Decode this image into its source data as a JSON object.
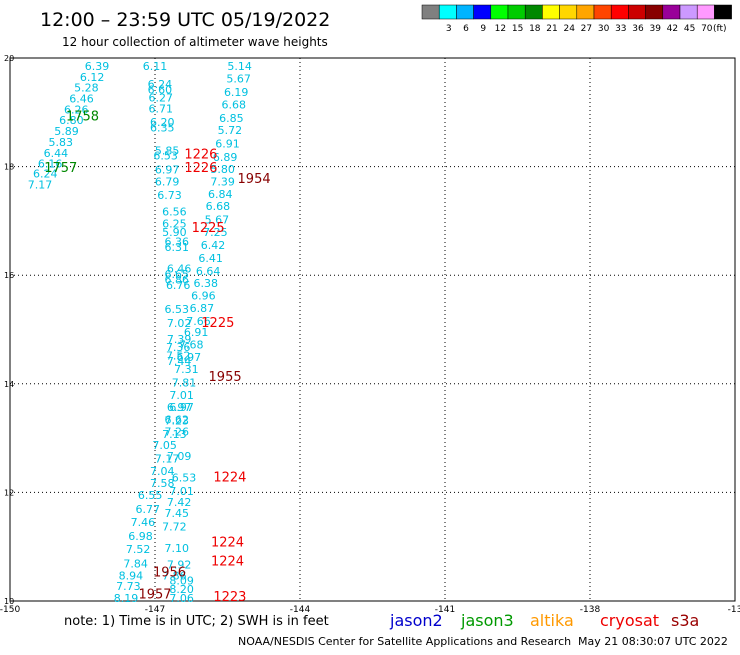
{
  "header": {
    "title": "12:00 – 23:59 UTC 05/19/2022",
    "subtitle": "12 hour collection of altimeter wave heights"
  },
  "legend": {
    "unit": "(ft)",
    "bins": [
      {
        "label": "",
        "color": "#808080"
      },
      {
        "label": "3",
        "color": "#00ffff"
      },
      {
        "label": "6",
        "color": "#00b4ff"
      },
      {
        "label": "9",
        "color": "#0000ff"
      },
      {
        "label": "12",
        "color": "#00ff00"
      },
      {
        "label": "15",
        "color": "#00cc00"
      },
      {
        "label": "18",
        "color": "#008800"
      },
      {
        "label": "21",
        "color": "#ffff00"
      },
      {
        "label": "24",
        "color": "#ffd700"
      },
      {
        "label": "27",
        "color": "#ffa500"
      },
      {
        "label": "30",
        "color": "#ff4500"
      },
      {
        "label": "33",
        "color": "#ff0000"
      },
      {
        "label": "36",
        "color": "#cc0000"
      },
      {
        "label": "39",
        "color": "#880000"
      },
      {
        "label": "42",
        "color": "#990099"
      },
      {
        "label": "45",
        "color": "#cc99ff"
      },
      {
        "label": "70",
        "color": "#ff99ff"
      },
      {
        "label": "",
        "color": "#000000"
      }
    ]
  },
  "axes": {
    "lon_ticks": [
      "-150",
      "-147",
      "-144",
      "-141",
      "-138",
      "-13"
    ],
    "lat_ticks": [
      "20",
      "18",
      "16",
      "14",
      "12",
      "10"
    ],
    "lon_range": [
      -150,
      -135
    ],
    "lat_range": [
      10,
      20
    ]
  },
  "colors": {
    "wave_value": "#00c0e0",
    "pass_red": "#ee0000",
    "pass_darkred": "#880000",
    "pass_green": "#008800"
  },
  "track_labels": [
    {
      "text": "1758",
      "lon": -148.5,
      "lat": 18.85,
      "color": "green"
    },
    {
      "text": "1757",
      "lon": -148.95,
      "lat": 17.9,
      "color": "green"
    },
    {
      "text": "1226",
      "lon": -146.05,
      "lat": 18.15,
      "color": "red"
    },
    {
      "text": "1226",
      "lon": -146.05,
      "lat": 17.9,
      "color": "red"
    },
    {
      "text": "1954",
      "lon": -144.95,
      "lat": 17.7,
      "color": "darkred"
    },
    {
      "text": "1225",
      "lon": -145.9,
      "lat": 16.8,
      "color": "red"
    },
    {
      "text": "1225",
      "lon": -145.7,
      "lat": 15.05,
      "color": "red"
    },
    {
      "text": "1955",
      "lon": -145.55,
      "lat": 14.05,
      "color": "darkred"
    },
    {
      "text": "1224",
      "lon": -145.45,
      "lat": 12.2,
      "color": "red"
    },
    {
      "text": "1224",
      "lon": -145.5,
      "lat": 11.0,
      "color": "red"
    },
    {
      "text": "1224",
      "lon": -145.5,
      "lat": 10.65,
      "color": "red"
    },
    {
      "text": "1956",
      "lon": -146.7,
      "lat": 10.45,
      "color": "darkred"
    },
    {
      "text": "1957",
      "lon": -147.0,
      "lat": 10.05,
      "color": "darkred"
    },
    {
      "text": "1223",
      "lon": -145.45,
      "lat": 10.0,
      "color": "red"
    }
  ],
  "wave_heights": [
    {
      "text": "6.39",
      "lon": -148.2,
      "lat": 19.78
    },
    {
      "text": "6.12",
      "lon": -148.3,
      "lat": 19.58
    },
    {
      "text": "5.28",
      "lon": -148.42,
      "lat": 19.38
    },
    {
      "text": "6.46",
      "lon": -148.52,
      "lat": 19.18
    },
    {
      "text": "6.26",
      "lon": -148.63,
      "lat": 18.98
    },
    {
      "text": "6.80",
      "lon": -148.73,
      "lat": 18.78
    },
    {
      "text": "5.89",
      "lon": -148.83,
      "lat": 18.58
    },
    {
      "text": "5.83",
      "lon": -148.95,
      "lat": 18.38
    },
    {
      "text": "6.44",
      "lon": -149.05,
      "lat": 18.18
    },
    {
      "text": "6.16",
      "lon": -149.17,
      "lat": 17.98
    },
    {
      "text": "6.24",
      "lon": -149.27,
      "lat": 17.8
    },
    {
      "text": "7.17",
      "lon": -149.38,
      "lat": 17.6
    },
    {
      "text": "6.11",
      "lon": -147.0,
      "lat": 19.78
    },
    {
      "text": "6.24",
      "lon": -146.9,
      "lat": 19.45
    },
    {
      "text": "6.60",
      "lon": -146.9,
      "lat": 19.35
    },
    {
      "text": "6.27",
      "lon": -146.88,
      "lat": 19.2
    },
    {
      "text": "6.71",
      "lon": -146.88,
      "lat": 19.0
    },
    {
      "text": "6.20",
      "lon": -146.85,
      "lat": 18.75
    },
    {
      "text": "6.35",
      "lon": -146.85,
      "lat": 18.65
    },
    {
      "text": "5.85",
      "lon": -146.75,
      "lat": 18.22
    },
    {
      "text": "6.53",
      "lon": -146.78,
      "lat": 18.13
    },
    {
      "text": "6.97",
      "lon": -146.75,
      "lat": 17.87
    },
    {
      "text": "6.79",
      "lon": -146.75,
      "lat": 17.65
    },
    {
      "text": "6.73",
      "lon": -146.7,
      "lat": 17.4
    },
    {
      "text": "5.14",
      "lon": -145.25,
      "lat": 19.78
    },
    {
      "text": "5.67",
      "lon": -145.27,
      "lat": 19.55
    },
    {
      "text": "6.19",
      "lon": -145.32,
      "lat": 19.3
    },
    {
      "text": "6.68",
      "lon": -145.37,
      "lat": 19.07
    },
    {
      "text": "6.85",
      "lon": -145.42,
      "lat": 18.82
    },
    {
      "text": "5.72",
      "lon": -145.45,
      "lat": 18.6
    },
    {
      "text": "6.91",
      "lon": -145.5,
      "lat": 18.35
    },
    {
      "text": "6.89",
      "lon": -145.55,
      "lat": 18.1
    },
    {
      "text": "5.80",
      "lon": -145.6,
      "lat": 17.88
    },
    {
      "text": "7.39",
      "lon": -145.6,
      "lat": 17.65
    },
    {
      "text": "6.84",
      "lon": -145.65,
      "lat": 17.42
    },
    {
      "text": "6.68",
      "lon": -145.7,
      "lat": 17.2
    },
    {
      "text": "5.67",
      "lon": -145.72,
      "lat": 16.95
    },
    {
      "text": "7.25",
      "lon": -145.75,
      "lat": 16.72
    },
    {
      "text": "6.42",
      "lon": -145.8,
      "lat": 16.48
    },
    {
      "text": "6.41",
      "lon": -145.85,
      "lat": 16.24
    },
    {
      "text": "6.64",
      "lon": -145.9,
      "lat": 16.0
    },
    {
      "text": "6.38",
      "lon": -145.95,
      "lat": 15.78
    },
    {
      "text": "6.96",
      "lon": -146.0,
      "lat": 15.55
    },
    {
      "text": "6.87",
      "lon": -146.03,
      "lat": 15.32
    },
    {
      "text": "7.66",
      "lon": -146.1,
      "lat": 15.08
    },
    {
      "text": "6.91",
      "lon": -146.15,
      "lat": 14.88
    },
    {
      "text": "7.68",
      "lon": -146.25,
      "lat": 14.65
    },
    {
      "text": "6.97",
      "lon": -146.3,
      "lat": 14.42
    },
    {
      "text": "7.31",
      "lon": -146.35,
      "lat": 14.2
    },
    {
      "text": "7.81",
      "lon": -146.4,
      "lat": 13.95
    },
    {
      "text": "7.01",
      "lon": -146.45,
      "lat": 13.72
    },
    {
      "text": "6.97",
      "lon": -146.5,
      "lat": 13.5
    },
    {
      "text": "7.23",
      "lon": -146.55,
      "lat": 13.25
    },
    {
      "text": "7.13",
      "lon": -146.6,
      "lat": 13.0
    },
    {
      "text": "7.09",
      "lon": -146.5,
      "lat": 12.6
    },
    {
      "text": "6.53",
      "lon": -146.4,
      "lat": 12.2
    },
    {
      "text": "7.01",
      "lon": -146.45,
      "lat": 11.95
    },
    {
      "text": "7.42",
      "lon": -146.5,
      "lat": 11.75
    },
    {
      "text": "7.45",
      "lon": -146.55,
      "lat": 11.55
    },
    {
      "text": "7.72",
      "lon": -146.6,
      "lat": 11.3
    },
    {
      "text": "7.10",
      "lon": -146.55,
      "lat": 10.9
    },
    {
      "text": "7.92",
      "lon": -146.5,
      "lat": 10.6
    },
    {
      "text": "7.86",
      "lon": -146.6,
      "lat": 10.4
    },
    {
      "text": "8.09",
      "lon": -146.45,
      "lat": 10.3
    },
    {
      "text": "8.20",
      "lon": -146.45,
      "lat": 10.15
    },
    {
      "text": "7.06",
      "lon": -146.45,
      "lat": 9.98
    },
    {
      "text": "6.56",
      "lon": -146.6,
      "lat": 17.1
    },
    {
      "text": "6.25",
      "lon": -146.6,
      "lat": 16.88
    },
    {
      "text": "5.90",
      "lon": -146.6,
      "lat": 16.72
    },
    {
      "text": "6.36",
      "lon": -146.55,
      "lat": 16.55
    },
    {
      "text": "6.31",
      "lon": -146.55,
      "lat": 16.45
    },
    {
      "text": "6.46",
      "lon": -146.5,
      "lat": 16.05
    },
    {
      "text": "6.65",
      "lon": -146.55,
      "lat": 15.95
    },
    {
      "text": "6.86",
      "lon": -146.55,
      "lat": 15.85
    },
    {
      "text": "6.76",
      "lon": -146.52,
      "lat": 15.75
    },
    {
      "text": "6.53",
      "lon": -146.55,
      "lat": 15.3
    },
    {
      "text": "7.02",
      "lon": -146.5,
      "lat": 15.05
    },
    {
      "text": "7.39",
      "lon": -146.5,
      "lat": 14.75
    },
    {
      "text": "7.36",
      "lon": -146.52,
      "lat": 14.6
    },
    {
      "text": "7.52",
      "lon": -146.52,
      "lat": 14.45
    },
    {
      "text": "7.44",
      "lon": -146.5,
      "lat": 14.35
    },
    {
      "text": "6.97",
      "lon": -146.45,
      "lat": 13.5
    },
    {
      "text": "6.62",
      "lon": -146.55,
      "lat": 13.27
    },
    {
      "text": "7.26",
      "lon": -146.55,
      "lat": 13.05
    },
    {
      "text": "7.05",
      "lon": -146.8,
      "lat": 12.8
    },
    {
      "text": "7.17",
      "lon": -146.75,
      "lat": 12.55
    },
    {
      "text": "7.04",
      "lon": -146.85,
      "lat": 12.32
    },
    {
      "text": "7.58",
      "lon": -146.85,
      "lat": 12.1
    },
    {
      "text": "6.55",
      "lon": -147.1,
      "lat": 11.88
    },
    {
      "text": "6.77",
      "lon": -147.15,
      "lat": 11.62
    },
    {
      "text": "7.46",
      "lon": -147.25,
      "lat": 11.38
    },
    {
      "text": "6.98",
      "lon": -147.3,
      "lat": 11.12
    },
    {
      "text": "7.52",
      "lon": -147.35,
      "lat": 10.88
    },
    {
      "text": "7.84",
      "lon": -147.4,
      "lat": 10.62
    },
    {
      "text": "8.94",
      "lon": -147.5,
      "lat": 10.4
    },
    {
      "text": "7.73",
      "lon": -147.55,
      "lat": 10.2
    },
    {
      "text": "8.19",
      "lon": -147.6,
      "lat": 9.98
    }
  ],
  "footer": {
    "note": "note:  1) Time is in UTC;  2) SWH is in feet",
    "missions": [
      {
        "label": "jason2",
        "color": "#0000cc"
      },
      {
        "label": "jason3",
        "color": "#009900"
      },
      {
        "label": "altika",
        "color": "#ff9900"
      },
      {
        "label": "cryosat",
        "color": "#ee0000"
      },
      {
        "label": "s3a",
        "color": "#990000"
      }
    ],
    "credit": "NOAA/NESDIS Center for Satellite Applications and Research",
    "timestamp": "May 21 08:30:07 UTC 2022"
  }
}
